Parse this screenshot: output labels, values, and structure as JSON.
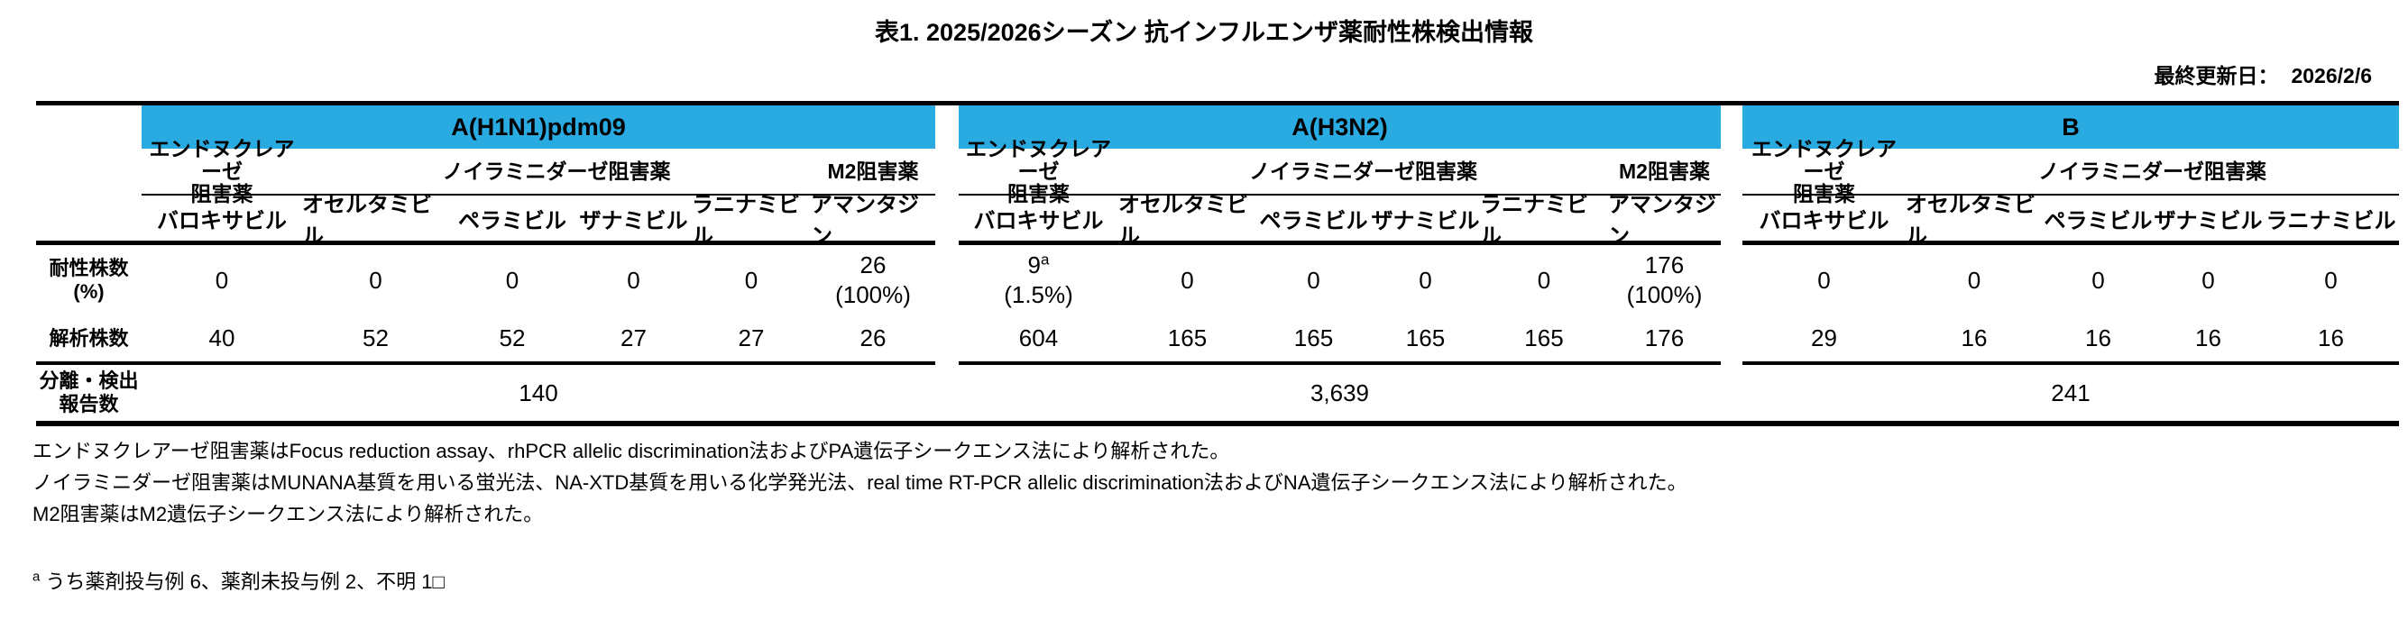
{
  "page": {
    "title": "表1. 2025/2026シーズン 抗インフルエンザ薬耐性株検出情報",
    "last_updated_label": "最終更新日：",
    "last_updated_value": "2026/2/6"
  },
  "colors": {
    "section_header_bg": "#29ABE2",
    "text": "#000000"
  },
  "table": {
    "row_labels": {
      "resistant_main": "耐性株数",
      "resistant_sub": "(%)",
      "analyzed": "解析株数",
      "isolated_main": "分離・検出",
      "isolated_sub": "報告数"
    },
    "sections": [
      {
        "name": "A(H1N1)pdm09",
        "groups": [
          {
            "lines": [
              "エンドヌクレアーゼ",
              "阻害薬"
            ],
            "cols": 1
          },
          {
            "lines": [
              "ノイラミニダーゼ阻害薬"
            ],
            "cols": 4
          },
          {
            "lines": [
              "M2阻害薬"
            ],
            "cols": 1
          }
        ],
        "drugs": [
          "バロキサビル",
          "オセルタミビル",
          "ペラミビル",
          "ザナミビル",
          "ラニナミビル",
          "アマンタジン"
        ],
        "resistant": [
          {
            "main": "0"
          },
          {
            "main": "0"
          },
          {
            "main": "0"
          },
          {
            "main": "0"
          },
          {
            "main": "0"
          },
          {
            "main": "26",
            "sub": "(100%)"
          }
        ],
        "analyzed": [
          "40",
          "52",
          "52",
          "27",
          "27",
          "26"
        ],
        "isolated": "140"
      },
      {
        "name": "A(H3N2)",
        "groups": [
          {
            "lines": [
              "エンドヌクレアーゼ",
              "阻害薬"
            ],
            "cols": 1
          },
          {
            "lines": [
              "ノイラミニダーゼ阻害薬"
            ],
            "cols": 4
          },
          {
            "lines": [
              "M2阻害薬"
            ],
            "cols": 1
          }
        ],
        "drugs": [
          "バロキサビル",
          "オセルタミビル",
          "ペラミビル",
          "ザナミビル",
          "ラニナミビル",
          "アマンタジン"
        ],
        "resistant": [
          {
            "main": "9",
            "sup": "a",
            "sub": "(1.5%)"
          },
          {
            "main": "0"
          },
          {
            "main": "0"
          },
          {
            "main": "0"
          },
          {
            "main": "0"
          },
          {
            "main": "176",
            "sub": "(100%)"
          }
        ],
        "analyzed": [
          "604",
          "165",
          "165",
          "165",
          "165",
          "176"
        ],
        "isolated": "3,639"
      },
      {
        "name": "B",
        "groups": [
          {
            "lines": [
              "エンドヌクレアーゼ",
              "阻害薬"
            ],
            "cols": 1
          },
          {
            "lines": [
              "ノイラミニダーゼ阻害薬"
            ],
            "cols": 4
          }
        ],
        "drugs": [
          "バロキサビル",
          "オセルタミビル",
          "ペラミビル",
          "ザナミビル",
          "ラニナミビル"
        ],
        "resistant": [
          {
            "main": "0"
          },
          {
            "main": "0"
          },
          {
            "main": "0"
          },
          {
            "main": "0"
          },
          {
            "main": "0"
          }
        ],
        "analyzed": [
          "29",
          "16",
          "16",
          "16",
          "16"
        ],
        "isolated": "241"
      }
    ]
  },
  "footnotes": [
    "エンドヌクレアーゼ阻害薬はFocus reduction assay、rhPCR allelic discrimination法およびPA遺伝子シークエンス法により解析された。",
    "ノイラミニダーゼ阻害薬はMUNANA基質を用いる蛍光法、NA-XTD基質を用いる化学発光法、real time RT-PCR allelic discrimination法およびNA遺伝子シークエンス法により解析された。",
    "M2阻害薬はM2遺伝子シークエンス法により解析された。"
  ],
  "footnote_a": {
    "marker": "a",
    "text": "うち薬剤投与例 6、薬剤未投与例 2、不明 1□"
  }
}
